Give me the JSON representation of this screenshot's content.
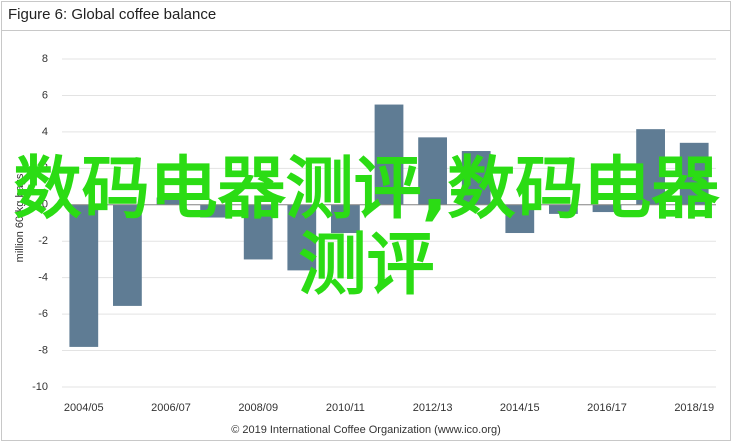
{
  "chart_data": {
    "type": "bar",
    "title": "Figure 6: Global coffee balance",
    "y_label": "million 60-kg bags",
    "categories": [
      "2004/05",
      null,
      "2006/07",
      null,
      "2008/09",
      null,
      "2010/11",
      null,
      "2012/13",
      null,
      "2014/15",
      null,
      "2016/17",
      null,
      "2018/19"
    ],
    "values": [
      -7.8,
      -5.55,
      0.4,
      -0.7,
      -3.0,
      -3.6,
      -1.55,
      5.5,
      3.7,
      2.95,
      -1.55,
      -0.5,
      -0.4,
      4.15,
      3.4
    ],
    "color": "#5f7c94",
    "ylim": [
      -10,
      8
    ],
    "yticks": [
      -10,
      -8,
      -6,
      -4,
      -2,
      0,
      2,
      4,
      6,
      8
    ],
    "grid": true,
    "source": "© 2019 International Coffee Organization (www.ico.org)",
    "watermark": "数码电器测评,数码电器测评"
  }
}
